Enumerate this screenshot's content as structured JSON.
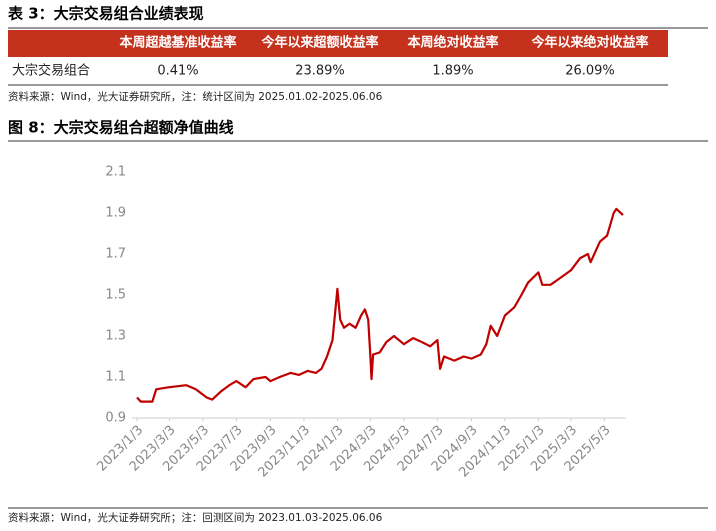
{
  "table": {
    "title": "表 3：大宗交易组合业绩表现",
    "header": [
      "本周超越基准收益率",
      "今年以来超额收益率",
      "本周绝对收益率",
      "今年以来绝对收益率"
    ],
    "rows": [
      [
        "大宗交易组合",
        "0.41%",
        "23.89%",
        "1.89%",
        "26.09%"
      ]
    ],
    "source": "资料来源：Wind，光大证券研究所，注：统计区间为 2025.01.02-2025.06.06"
  },
  "chart_data": {
    "type": "line",
    "title": "图 8：大宗交易组合超额净值曲线",
    "source": "资料来源：Wind，光大证券研究所；注：回测区间为 2023.01.03-2025.06.06",
    "x": [
      "2023/1/3",
      "2023/1/10",
      "2023/1/31",
      "2023/2/7",
      "2023/3/1",
      "2023/4/3",
      "2023/4/20",
      "2023/5/10",
      "2023/5/20",
      "2023/6/5",
      "2023/6/20",
      "2023/7/3",
      "2023/7/20",
      "2023/8/3",
      "2023/8/25",
      "2023/9/3",
      "2023/9/20",
      "2023/10/10",
      "2023/10/25",
      "2023/11/10",
      "2023/11/25",
      "2023/12/5",
      "2023/12/15",
      "2023/12/25",
      "2024/1/3",
      "2024/1/8",
      "2024/1/15",
      "2024/1/25",
      "2024/2/5",
      "2024/2/15",
      "2024/2/22",
      "2024/2/28",
      "2024/3/3",
      "2024/3/5",
      "2024/3/8",
      "2024/3/20",
      "2024/4/1",
      "2024/4/15",
      "2024/5/3",
      "2024/5/20",
      "2024/6/5",
      "2024/6/20",
      "2024/7/3",
      "2024/7/8",
      "2024/7/15",
      "2024/8/3",
      "2024/8/20",
      "2024/9/3",
      "2024/9/20",
      "2024/9/30",
      "2024/10/8",
      "2024/10/20",
      "2024/11/3",
      "2024/11/20",
      "2024/12/3",
      "2024/12/15",
      "2025/1/3",
      "2025/1/10",
      "2025/1/25",
      "2025/2/10",
      "2025/3/3",
      "2025/3/20",
      "2025/4/3",
      "2025/4/8",
      "2025/4/25",
      "2025/5/8",
      "2025/5/20",
      "2025/5/25",
      "2025/6/6"
    ],
    "series": [
      {
        "color": "#c00000",
        "values": [
          1.0,
          0.98,
          0.98,
          1.04,
          1.05,
          1.06,
          1.04,
          1.0,
          0.99,
          1.03,
          1.06,
          1.08,
          1.05,
          1.09,
          1.1,
          1.08,
          1.1,
          1.12,
          1.11,
          1.13,
          1.12,
          1.14,
          1.2,
          1.28,
          1.53,
          1.38,
          1.34,
          1.36,
          1.34,
          1.4,
          1.43,
          1.38,
          1.2,
          1.09,
          1.21,
          1.22,
          1.27,
          1.3,
          1.26,
          1.29,
          1.27,
          1.25,
          1.28,
          1.14,
          1.2,
          1.18,
          1.2,
          1.19,
          1.21,
          1.26,
          1.35,
          1.3,
          1.4,
          1.44,
          1.5,
          1.56,
          1.61,
          1.55,
          1.55,
          1.58,
          1.62,
          1.68,
          1.7,
          1.66,
          1.76,
          1.79,
          1.9,
          1.92,
          1.89
        ]
      }
    ],
    "xlim": [
      "2023/1/3",
      "2025/6/6"
    ],
    "xticks": [
      "2023/1/3",
      "2023/3/3",
      "2023/5/3",
      "2023/7/3",
      "2023/9/3",
      "2023/11/3",
      "2024/1/3",
      "2024/3/3",
      "2024/5/3",
      "2024/7/3",
      "2024/9/3",
      "2024/11/3",
      "2025/1/3",
      "2025/3/3",
      "2025/5/3"
    ],
    "ylim": [
      0.9,
      2.1
    ],
    "yticks": [
      0.9,
      1.1,
      1.3,
      1.5,
      1.7,
      1.9,
      2.1
    ],
    "grid": false
  }
}
